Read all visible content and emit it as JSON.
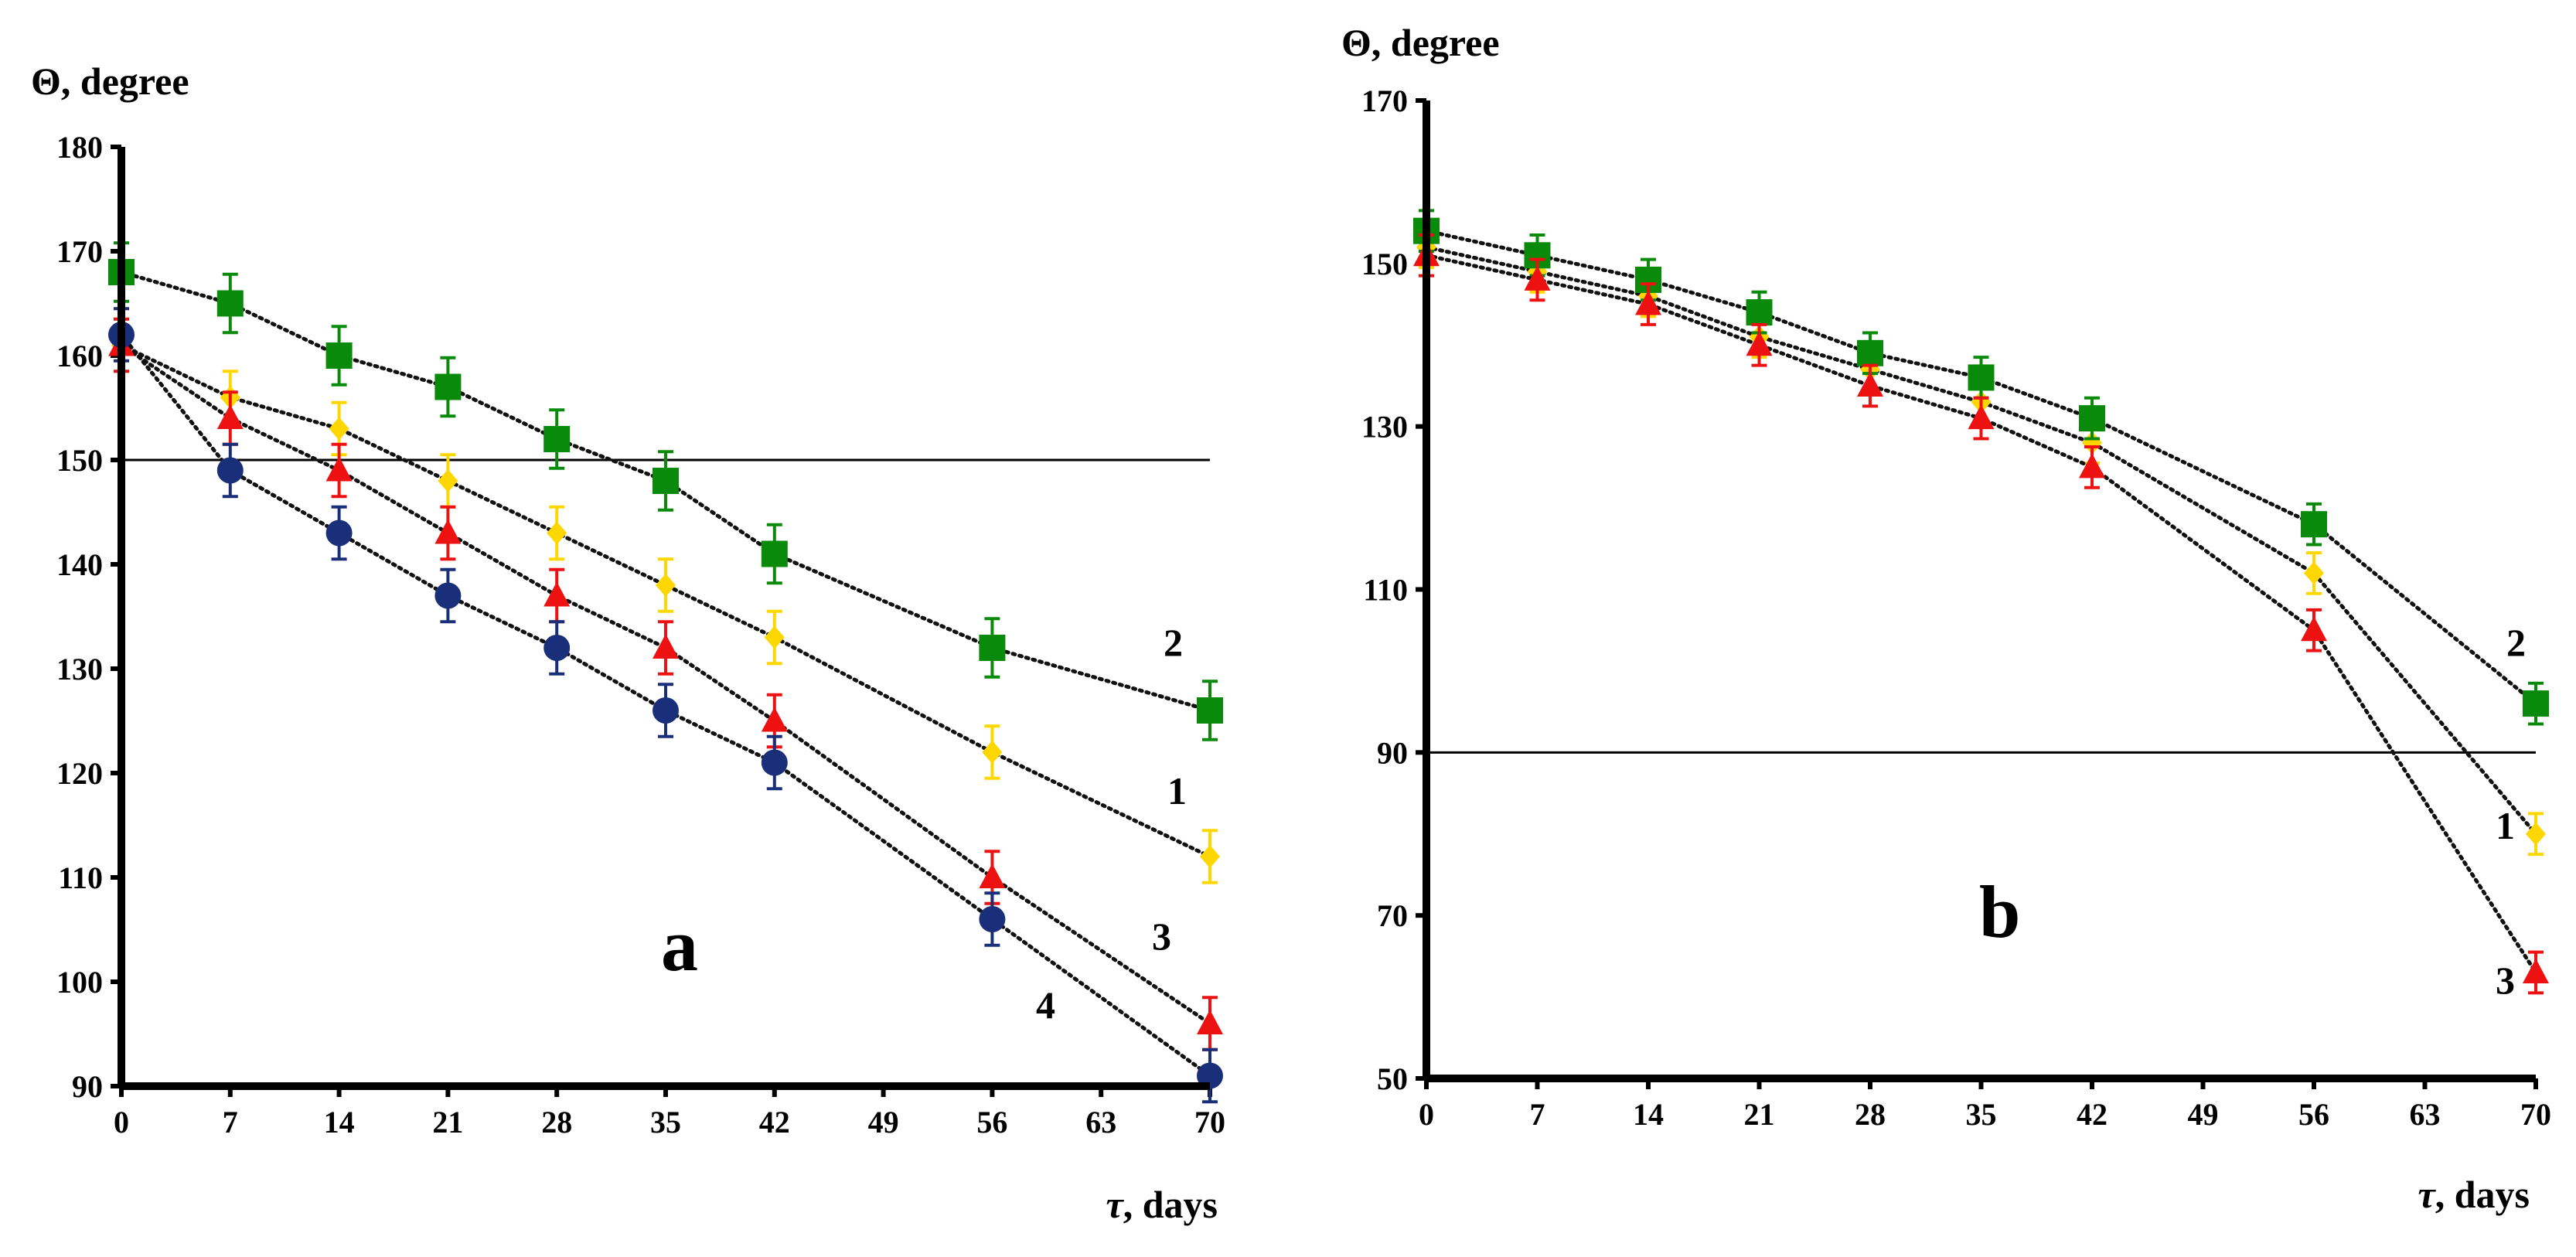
{
  "chart_data": [
    {
      "type": "line",
      "panel_label": "a",
      "ylabel": "Θ, degree",
      "xlabel_symbol": "τ",
      "xlabel_rest": ", days",
      "xticks": [
        "0",
        "7",
        "14",
        "21",
        "28",
        "35",
        "42",
        "49",
        "56",
        "63",
        "70"
      ],
      "yticks": [
        "90",
        "100",
        "110",
        "120",
        "130",
        "140",
        "150",
        "160",
        "170",
        "180"
      ],
      "xlim": [
        0,
        70
      ],
      "ylim": [
        90,
        180
      ],
      "reference_line": 150,
      "line_style": "dotted",
      "series": [
        {
          "name": "1",
          "color": "#FFD700",
          "marker": "diamond",
          "x": [
            0,
            7,
            14,
            21,
            28,
            35,
            42,
            56,
            70
          ],
          "y": [
            161,
            156,
            153,
            148,
            143,
            138,
            133,
            122,
            112
          ],
          "err": 2.5
        },
        {
          "name": "2",
          "color": "#0A8A0A",
          "marker": "square",
          "x": [
            0,
            7,
            14,
            21,
            28,
            35,
            42,
            56,
            70
          ],
          "y": [
            168,
            165,
            160,
            157,
            152,
            148,
            141,
            132,
            126
          ],
          "err": 2.8
        },
        {
          "name": "3",
          "color": "#EE1111",
          "marker": "triangle",
          "x": [
            0,
            7,
            14,
            21,
            28,
            35,
            42,
            56,
            70
          ],
          "y": [
            161,
            154,
            149,
            143,
            137,
            132,
            125,
            110,
            96
          ],
          "err": 2.5
        },
        {
          "name": "4",
          "color": "#1A2F7A",
          "marker": "circle",
          "x": [
            0,
            7,
            14,
            21,
            28,
            35,
            42,
            56,
            70
          ],
          "y": [
            162,
            149,
            143,
            137,
            132,
            126,
            121,
            106,
            91
          ],
          "err": 2.5
        }
      ]
    },
    {
      "type": "line",
      "panel_label": "b",
      "ylabel": "Θ, degree",
      "xlabel_symbol": "τ",
      "xlabel_rest": ", days",
      "xticks": [
        "0",
        "7",
        "14",
        "21",
        "28",
        "35",
        "42",
        "49",
        "56",
        "63",
        "70"
      ],
      "yticks": [
        "50",
        "70",
        "90",
        "110",
        "130",
        "150",
        "170"
      ],
      "xlim": [
        0,
        70
      ],
      "ylim": [
        50,
        170
      ],
      "reference_line": 90,
      "line_style": "dotted",
      "series": [
        {
          "name": "1",
          "color": "#FFD700",
          "marker": "diamond",
          "x": [
            0,
            7,
            14,
            21,
            28,
            35,
            42,
            56,
            70
          ],
          "y": [
            152,
            149,
            146,
            141,
            137,
            133,
            128,
            112,
            80
          ],
          "err": 2.5
        },
        {
          "name": "2",
          "color": "#0A8A0A",
          "marker": "square",
          "x": [
            0,
            7,
            14,
            21,
            28,
            35,
            42,
            56,
            70
          ],
          "y": [
            154,
            151,
            148,
            144,
            139,
            136,
            131,
            118,
            96
          ],
          "err": 2.5
        },
        {
          "name": "3",
          "color": "#EE1111",
          "marker": "triangle",
          "x": [
            0,
            7,
            14,
            21,
            28,
            35,
            42,
            56,
            70
          ],
          "y": [
            151,
            148,
            145,
            140,
            135,
            131,
            125,
            105,
            63
          ],
          "err": 2.5
        }
      ]
    }
  ]
}
